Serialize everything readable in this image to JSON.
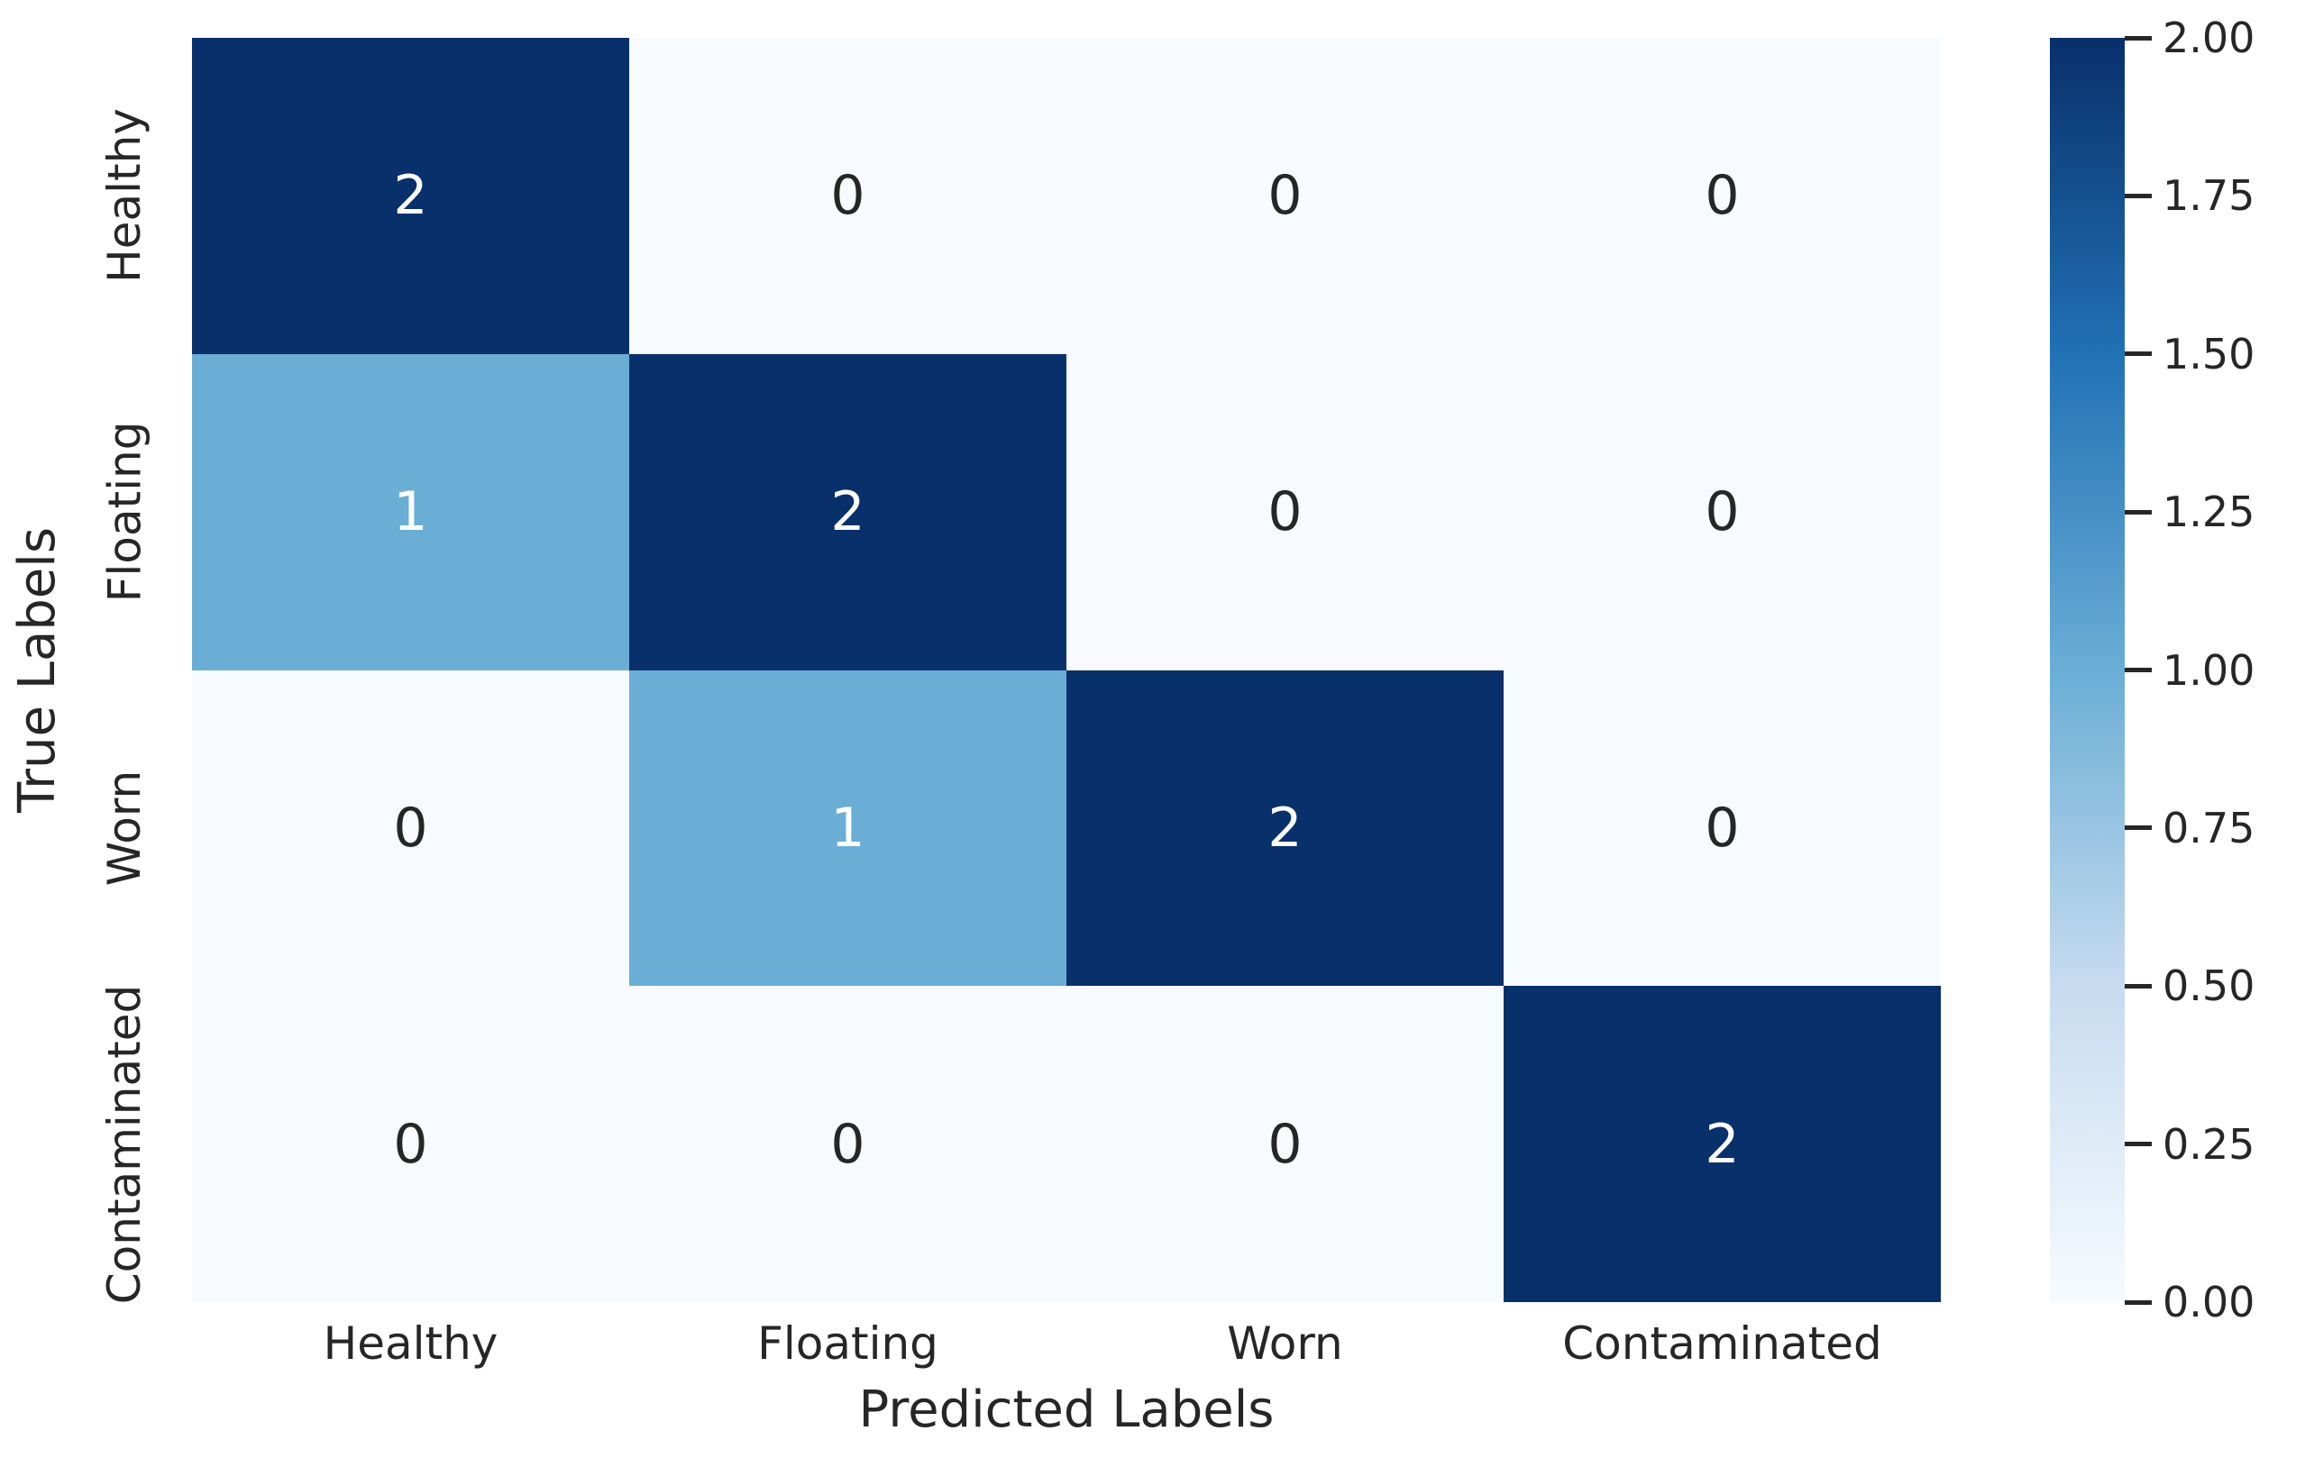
{
  "chart_data": {
    "type": "heatmap",
    "title": "",
    "xlabel": "Predicted Labels",
    "ylabel": "True Labels",
    "x_categories": [
      "Healthy",
      "Floating",
      "Worn",
      "Contaminated"
    ],
    "y_categories": [
      "Healthy",
      "Floating",
      "Worn",
      "Contaminated"
    ],
    "matrix": [
      [
        2,
        0,
        0,
        0
      ],
      [
        1,
        2,
        0,
        0
      ],
      [
        0,
        1,
        2,
        0
      ],
      [
        0,
        0,
        0,
        2
      ]
    ],
    "vmin": 0,
    "vmax": 2,
    "colormap": "Blues",
    "value_colors": {
      "0": "#f7fbff",
      "1": "#6aaed6",
      "2": "#08306b"
    },
    "value_text_colors": {
      "0": "#262626",
      "1": "#ffffff",
      "2": "#ffffff"
    },
    "legend_position": "right",
    "grid": false,
    "colorbar": {
      "tick_labels": [
        "2.00",
        "1.75",
        "1.50",
        "1.25",
        "1.00",
        "0.75",
        "0.50",
        "0.25",
        "0.00"
      ],
      "gradient_stops_bottom_to_top": [
        "#f7fbff",
        "#c6dbef",
        "#6aaed6",
        "#2171b5",
        "#08306b"
      ]
    }
  }
}
